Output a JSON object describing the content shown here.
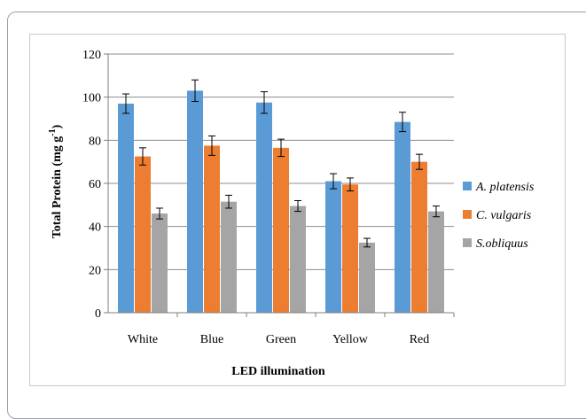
{
  "chart_data": {
    "type": "bar",
    "title": "",
    "xlabel": "LED illumination",
    "ylabel": "Total Protein (mg g",
    "ylabel_superscript": "-1",
    "ylabel_suffix": ")",
    "categories": [
      "White",
      "Blue",
      "Green",
      "Yellow",
      "Red"
    ],
    "ylim": [
      0,
      120
    ],
    "yticks": [
      0,
      20,
      40,
      60,
      80,
      100,
      120
    ],
    "grid": true,
    "legend_position": "right",
    "series": [
      {
        "name": "A. platensis",
        "color": "#5b9bd5",
        "values": [
          97,
          103,
          97.5,
          61,
          88.5
        ],
        "errors": [
          4.5,
          5,
          5,
          3.5,
          4.5
        ]
      },
      {
        "name": "C. vulgaris",
        "color": "#ed7d31",
        "values": [
          72.5,
          77.5,
          76.5,
          59.5,
          70
        ],
        "errors": [
          4,
          4.5,
          4,
          3,
          3.5
        ]
      },
      {
        "name": "S.obliquus",
        "color": "#a5a5a5",
        "values": [
          46,
          51.5,
          49.5,
          32.5,
          47
        ],
        "errors": [
          2.5,
          3,
          2.5,
          2,
          2.5
        ]
      }
    ]
  }
}
